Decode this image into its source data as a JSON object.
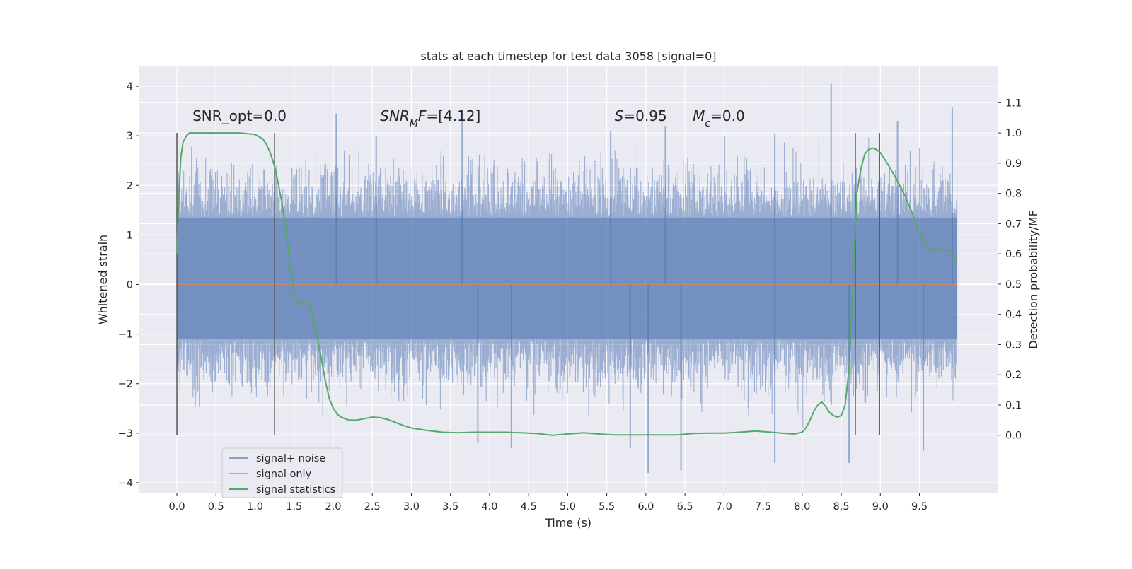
{
  "chart_data": {
    "type": "line",
    "title": "stats at each timestep for test data 3058 [signal=0]",
    "xlabel": "Time (s)",
    "ylabel": "Whitened strain",
    "y2label": "Detection probability/MF",
    "xlim": [
      -0.48,
      10.5
    ],
    "ylim": [
      -4.2,
      4.4
    ],
    "y2lim": [
      -0.19,
      1.22
    ],
    "xticks": [
      0.0,
      0.5,
      1.0,
      1.5,
      2.0,
      2.5,
      3.0,
      3.5,
      4.0,
      4.5,
      5.0,
      5.5,
      6.0,
      6.5,
      7.0,
      7.5,
      8.0,
      8.5,
      9.0,
      9.5
    ],
    "xtick_labels": [
      "0.0",
      "0.5",
      "1.0",
      "1.5",
      "2.0",
      "2.5",
      "3.0",
      "3.5",
      "4.0",
      "4.5",
      "5.0",
      "5.5",
      "6.0",
      "6.5",
      "7.0",
      "7.5",
      "8.0",
      "8.5",
      "9.0",
      "9.5"
    ],
    "yticks": [
      -4,
      -3,
      -2,
      -1,
      0,
      1,
      2,
      3,
      4
    ],
    "ytick_labels": [
      "−4",
      "−3",
      "−2",
      "−1",
      "0",
      "1",
      "2",
      "3",
      "4"
    ],
    "y2ticks": [
      0.0,
      0.1,
      0.2,
      0.3,
      0.4,
      0.5,
      0.6,
      0.7,
      0.8,
      0.9,
      1.0,
      1.1
    ],
    "y2tick_labels": [
      "0.0",
      "0.1",
      "0.2",
      "0.3",
      "0.4",
      "0.5",
      "0.6",
      "0.7",
      "0.8",
      "0.9",
      "1.0",
      "1.1"
    ],
    "grid": true,
    "legend_position": "bottom-left",
    "colors": {
      "background": "#eaeaf2",
      "grid": "#ffffff",
      "noise": "#4c72b0",
      "signal": "#dd8452",
      "stats": "#55a868",
      "marker": "#555555"
    },
    "noise_band": {
      "x_range": [
        0.0,
        9.98
      ],
      "core_envelope": [
        -1.1,
        1.35
      ],
      "typical_envelope": [
        -2.6,
        2.6
      ],
      "max_peak": 4.05,
      "min_peak": -3.8
    },
    "noise_peaks": [
      {
        "x": 2.04,
        "y": 3.45
      },
      {
        "x": 3.65,
        "y": 3.3
      },
      {
        "x": 8.37,
        "y": 4.05
      },
      {
        "x": 9.92,
        "y": 3.57
      },
      {
        "x": 9.22,
        "y": 3.3
      },
      {
        "x": 6.25,
        "y": 3.2
      },
      {
        "x": 7.65,
        "y": 3.05
      },
      {
        "x": 5.55,
        "y": 3.1
      },
      {
        "x": 2.55,
        "y": 3.0
      },
      {
        "x": 6.03,
        "y": -3.8
      },
      {
        "x": 6.45,
        "y": -3.75
      },
      {
        "x": 8.6,
        "y": -3.6
      },
      {
        "x": 9.55,
        "y": -3.35
      },
      {
        "x": 7.65,
        "y": -3.6
      },
      {
        "x": 4.28,
        "y": -3.3
      },
      {
        "x": 3.85,
        "y": -3.2
      },
      {
        "x": 5.8,
        "y": -3.3
      }
    ],
    "vertical_markers": [
      0.0,
      1.25,
      8.68,
      8.99
    ],
    "series": [
      {
        "name": "signal+ noise",
        "values": []
      },
      {
        "name": "signal only",
        "x": [
          0.0,
          9.98
        ],
        "values": [
          0.0,
          0.0
        ]
      },
      {
        "name": "signal statistics",
        "axis": "right",
        "x": [
          0.0,
          0.02,
          0.05,
          0.08,
          0.12,
          0.16,
          0.22,
          0.3,
          0.5,
          0.8,
          1.0,
          1.1,
          1.15,
          1.2,
          1.25,
          1.3,
          1.35,
          1.4,
          1.45,
          1.5,
          1.55,
          1.6,
          1.65,
          1.7,
          1.75,
          1.8,
          1.85,
          1.9,
          1.95,
          2.0,
          2.05,
          2.1,
          2.2,
          2.3,
          2.4,
          2.5,
          2.6,
          2.7,
          2.8,
          2.9,
          3.0,
          3.2,
          3.4,
          3.6,
          3.8,
          4.0,
          4.2,
          4.4,
          4.6,
          4.8,
          5.0,
          5.2,
          5.4,
          5.6,
          5.8,
          6.0,
          6.2,
          6.4,
          6.6,
          6.8,
          7.0,
          7.2,
          7.4,
          7.6,
          7.8,
          7.9,
          8.0,
          8.05,
          8.1,
          8.15,
          8.2,
          8.25,
          8.3,
          8.35,
          8.4,
          8.45,
          8.5,
          8.55,
          8.6,
          8.65,
          8.7,
          8.75,
          8.8,
          8.85,
          8.9,
          8.95,
          9.0,
          9.05,
          9.1,
          9.2,
          9.3,
          9.4,
          9.5,
          9.6,
          9.7,
          9.8,
          9.9,
          9.98
        ],
        "values": [
          0.6,
          0.76,
          0.92,
          0.97,
          0.99,
          1.0,
          1.0,
          1.0,
          1.0,
          1.0,
          0.995,
          0.98,
          0.96,
          0.93,
          0.89,
          0.83,
          0.76,
          0.67,
          0.56,
          0.47,
          0.43,
          0.44,
          0.44,
          0.43,
          0.38,
          0.32,
          0.25,
          0.18,
          0.12,
          0.09,
          0.07,
          0.06,
          0.05,
          0.05,
          0.055,
          0.06,
          0.058,
          0.052,
          0.042,
          0.032,
          0.024,
          0.016,
          0.01,
          0.008,
          0.01,
          0.01,
          0.01,
          0.008,
          0.006,
          0.0,
          0.004,
          0.008,
          0.004,
          0.001,
          0.001,
          0.001,
          0.001,
          0.001,
          0.006,
          0.007,
          0.007,
          0.01,
          0.014,
          0.01,
          0.006,
          0.004,
          0.01,
          0.025,
          0.05,
          0.08,
          0.1,
          0.11,
          0.095,
          0.075,
          0.065,
          0.06,
          0.065,
          0.1,
          0.22,
          0.5,
          0.8,
          0.88,
          0.93,
          0.945,
          0.95,
          0.945,
          0.935,
          0.915,
          0.895,
          0.85,
          0.8,
          0.74,
          0.67,
          0.62,
          0.61,
          0.615,
          0.61,
          0.57
        ]
      }
    ],
    "annotations": [
      {
        "text": "SNR_opt=0.0",
        "x": 0.2,
        "y": 3.3
      },
      {
        "text": "SNR_MF=[4.12]",
        "x": 2.6,
        "y": 3.3
      },
      {
        "text": "S=0.95",
        "x": 5.6,
        "y": 3.3
      },
      {
        "text": "M_c=0.0",
        "x": 6.6,
        "y": 3.3
      }
    ]
  }
}
